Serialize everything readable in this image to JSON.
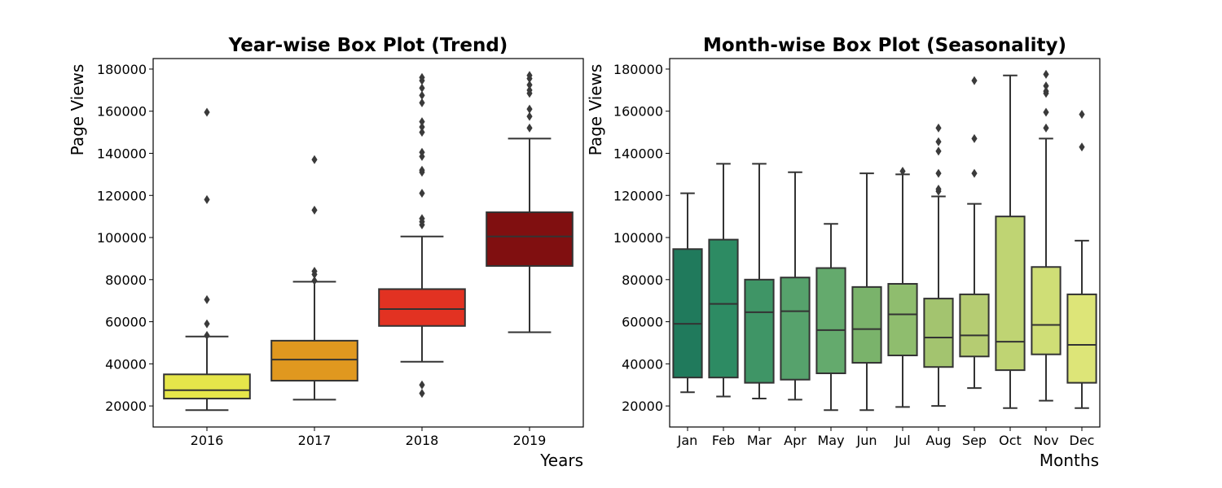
{
  "chart_data": [
    {
      "type": "box",
      "title": "Year-wise Box Plot (Trend)",
      "xlabel": "Years",
      "ylabel": "Page Views",
      "ylim": [
        10000,
        185000
      ],
      "yticks": [
        20000,
        40000,
        60000,
        80000,
        100000,
        120000,
        140000,
        160000,
        180000
      ],
      "ytick_labels": [
        "20000",
        "40000",
        "60000",
        "80000",
        "100000",
        "120000",
        "140000",
        "160000",
        "180000"
      ],
      "grid": false,
      "categories": [
        "2016",
        "2017",
        "2018",
        "2019"
      ],
      "colors": [
        "#e6e64a",
        "#e0981f",
        "#e23222",
        "#800f10"
      ],
      "boxes": [
        {
          "whisker_low": 18000,
          "q1": 23500,
          "median": 27500,
          "q3": 35000,
          "whisker_high": 53000,
          "outliers": [
            53500,
            59000,
            70500,
            118000,
            159500
          ]
        },
        {
          "whisker_low": 23000,
          "q1": 32000,
          "median": 42000,
          "q3": 51000,
          "whisker_high": 79000,
          "outliers": [
            79500,
            82500,
            84000,
            113000,
            137000
          ]
        },
        {
          "whisker_low": 41000,
          "q1": 58000,
          "median": 66000,
          "q3": 75500,
          "whisker_high": 100500,
          "outliers": [
            26000,
            30000,
            106000,
            107500,
            109000,
            121000,
            131000,
            132000,
            138500,
            140500,
            150000,
            152500,
            155000,
            164000,
            167500,
            171000,
            174500,
            176000
          ]
        },
        {
          "whisker_low": 55000,
          "q1": 86500,
          "median": 100500,
          "q3": 112000,
          "whisker_high": 147000,
          "outliers": [
            152000,
            157500,
            161000,
            168500,
            170000,
            172500,
            175500,
            177000
          ]
        }
      ]
    },
    {
      "type": "box",
      "title": "Month-wise Box Plot (Seasonality)",
      "xlabel": "Months",
      "ylabel": "Page Views",
      "ylim": [
        10000,
        185000
      ],
      "yticks": [
        20000,
        40000,
        60000,
        80000,
        100000,
        120000,
        140000,
        160000,
        180000
      ],
      "ytick_labels": [
        "20000",
        "40000",
        "60000",
        "80000",
        "100000",
        "120000",
        "140000",
        "160000",
        "180000"
      ],
      "grid": false,
      "categories": [
        "Jan",
        "Feb",
        "Mar",
        "Apr",
        "May",
        "Jun",
        "Jul",
        "Aug",
        "Sep",
        "Oct",
        "Nov",
        "Dec"
      ],
      "colors": [
        "#207a5c",
        "#2d8b63",
        "#3f9566",
        "#56a26c",
        "#64aa6d",
        "#7ab36b",
        "#8fbd6e",
        "#a3c46f",
        "#b5cc72",
        "#bfd473",
        "#cfde76",
        "#dde578"
      ],
      "boxes": [
        {
          "whisker_low": 26500,
          "q1": 33500,
          "median": 59000,
          "q3": 94500,
          "whisker_high": 121000,
          "outliers": []
        },
        {
          "whisker_low": 24500,
          "q1": 33500,
          "median": 68500,
          "q3": 99000,
          "whisker_high": 135000,
          "outliers": []
        },
        {
          "whisker_low": 23500,
          "q1": 31000,
          "median": 64500,
          "q3": 80000,
          "whisker_high": 135000,
          "outliers": []
        },
        {
          "whisker_low": 23000,
          "q1": 32500,
          "median": 65000,
          "q3": 81000,
          "whisker_high": 131000,
          "outliers": []
        },
        {
          "whisker_low": 18000,
          "q1": 35500,
          "median": 56000,
          "q3": 85500,
          "whisker_high": 106500,
          "outliers": []
        },
        {
          "whisker_low": 18000,
          "q1": 40500,
          "median": 56500,
          "q3": 76500,
          "whisker_high": 130500,
          "outliers": []
        },
        {
          "whisker_low": 19500,
          "q1": 44000,
          "median": 63500,
          "q3": 78000,
          "whisker_high": 130000,
          "outliers": [
            131500
          ]
        },
        {
          "whisker_low": 20000,
          "q1": 38500,
          "median": 52500,
          "q3": 71000,
          "whisker_high": 119500,
          "outliers": [
            122000,
            123000,
            130500,
            141000,
            145500,
            152000
          ]
        },
        {
          "whisker_low": 28500,
          "q1": 43500,
          "median": 53500,
          "q3": 73000,
          "whisker_high": 116000,
          "outliers": [
            130500,
            147000,
            174500
          ]
        },
        {
          "whisker_low": 19000,
          "q1": 37000,
          "median": 50500,
          "q3": 110000,
          "whisker_high": 177000,
          "outliers": []
        },
        {
          "whisker_low": 22500,
          "q1": 44500,
          "median": 58500,
          "q3": 86000,
          "whisker_high": 147000,
          "outliers": [
            152000,
            159500,
            168500,
            169500,
            172000,
            177500
          ]
        },
        {
          "whisker_low": 19000,
          "q1": 31000,
          "median": 49000,
          "q3": 73000,
          "whisker_high": 98500,
          "outliers": [
            143000,
            158500
          ]
        }
      ]
    }
  ]
}
